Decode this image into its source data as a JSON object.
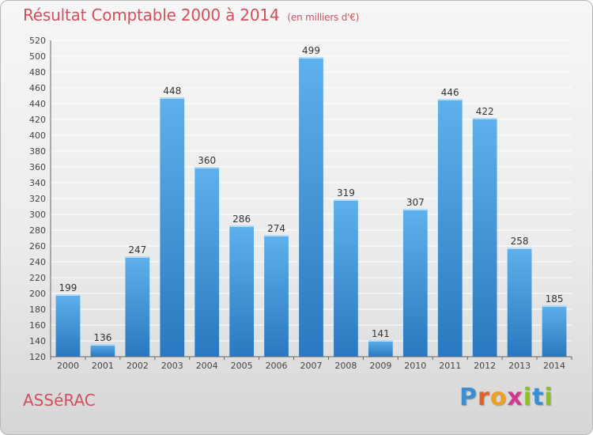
{
  "title": "Résultat Comptable 2000 à 2014",
  "unit": "(en milliers d'€)",
  "commune": "ASSéRAC",
  "brand": {
    "text": "Proxiti",
    "letters": [
      {
        "ch": "P",
        "color": "#3a8fd4"
      },
      {
        "ch": "r",
        "color": "#e0622a"
      },
      {
        "ch": "o",
        "color": "#f0a020"
      },
      {
        "ch": "x",
        "color": "#d03a8c"
      },
      {
        "ch": "i",
        "color": "#8cbf26"
      },
      {
        "ch": "t",
        "color": "#3a8fd4"
      },
      {
        "ch": "i",
        "color": "#8cbf26"
      }
    ]
  },
  "colors": {
    "title": "#d05060",
    "bar_light": "#5eb1ec",
    "bar_dark": "#2a78bf",
    "grid": "#ffffff"
  },
  "chart_data": {
    "type": "bar",
    "title": "Résultat Comptable 2000 à 2014",
    "subtitle": "(en milliers d'€)",
    "categories": [
      "2000",
      "2001",
      "2002",
      "2003",
      "2004",
      "2005",
      "2006",
      "2007",
      "2008",
      "2009",
      "2010",
      "2011",
      "2012",
      "2013",
      "2014"
    ],
    "values": [
      199,
      136,
      247,
      448,
      360,
      286,
      274,
      499,
      319,
      141,
      307,
      446,
      422,
      258,
      185
    ],
    "ylim": [
      120,
      520
    ],
    "ytick_step": 20,
    "xlabel": "",
    "ylabel": "",
    "grid": true
  }
}
